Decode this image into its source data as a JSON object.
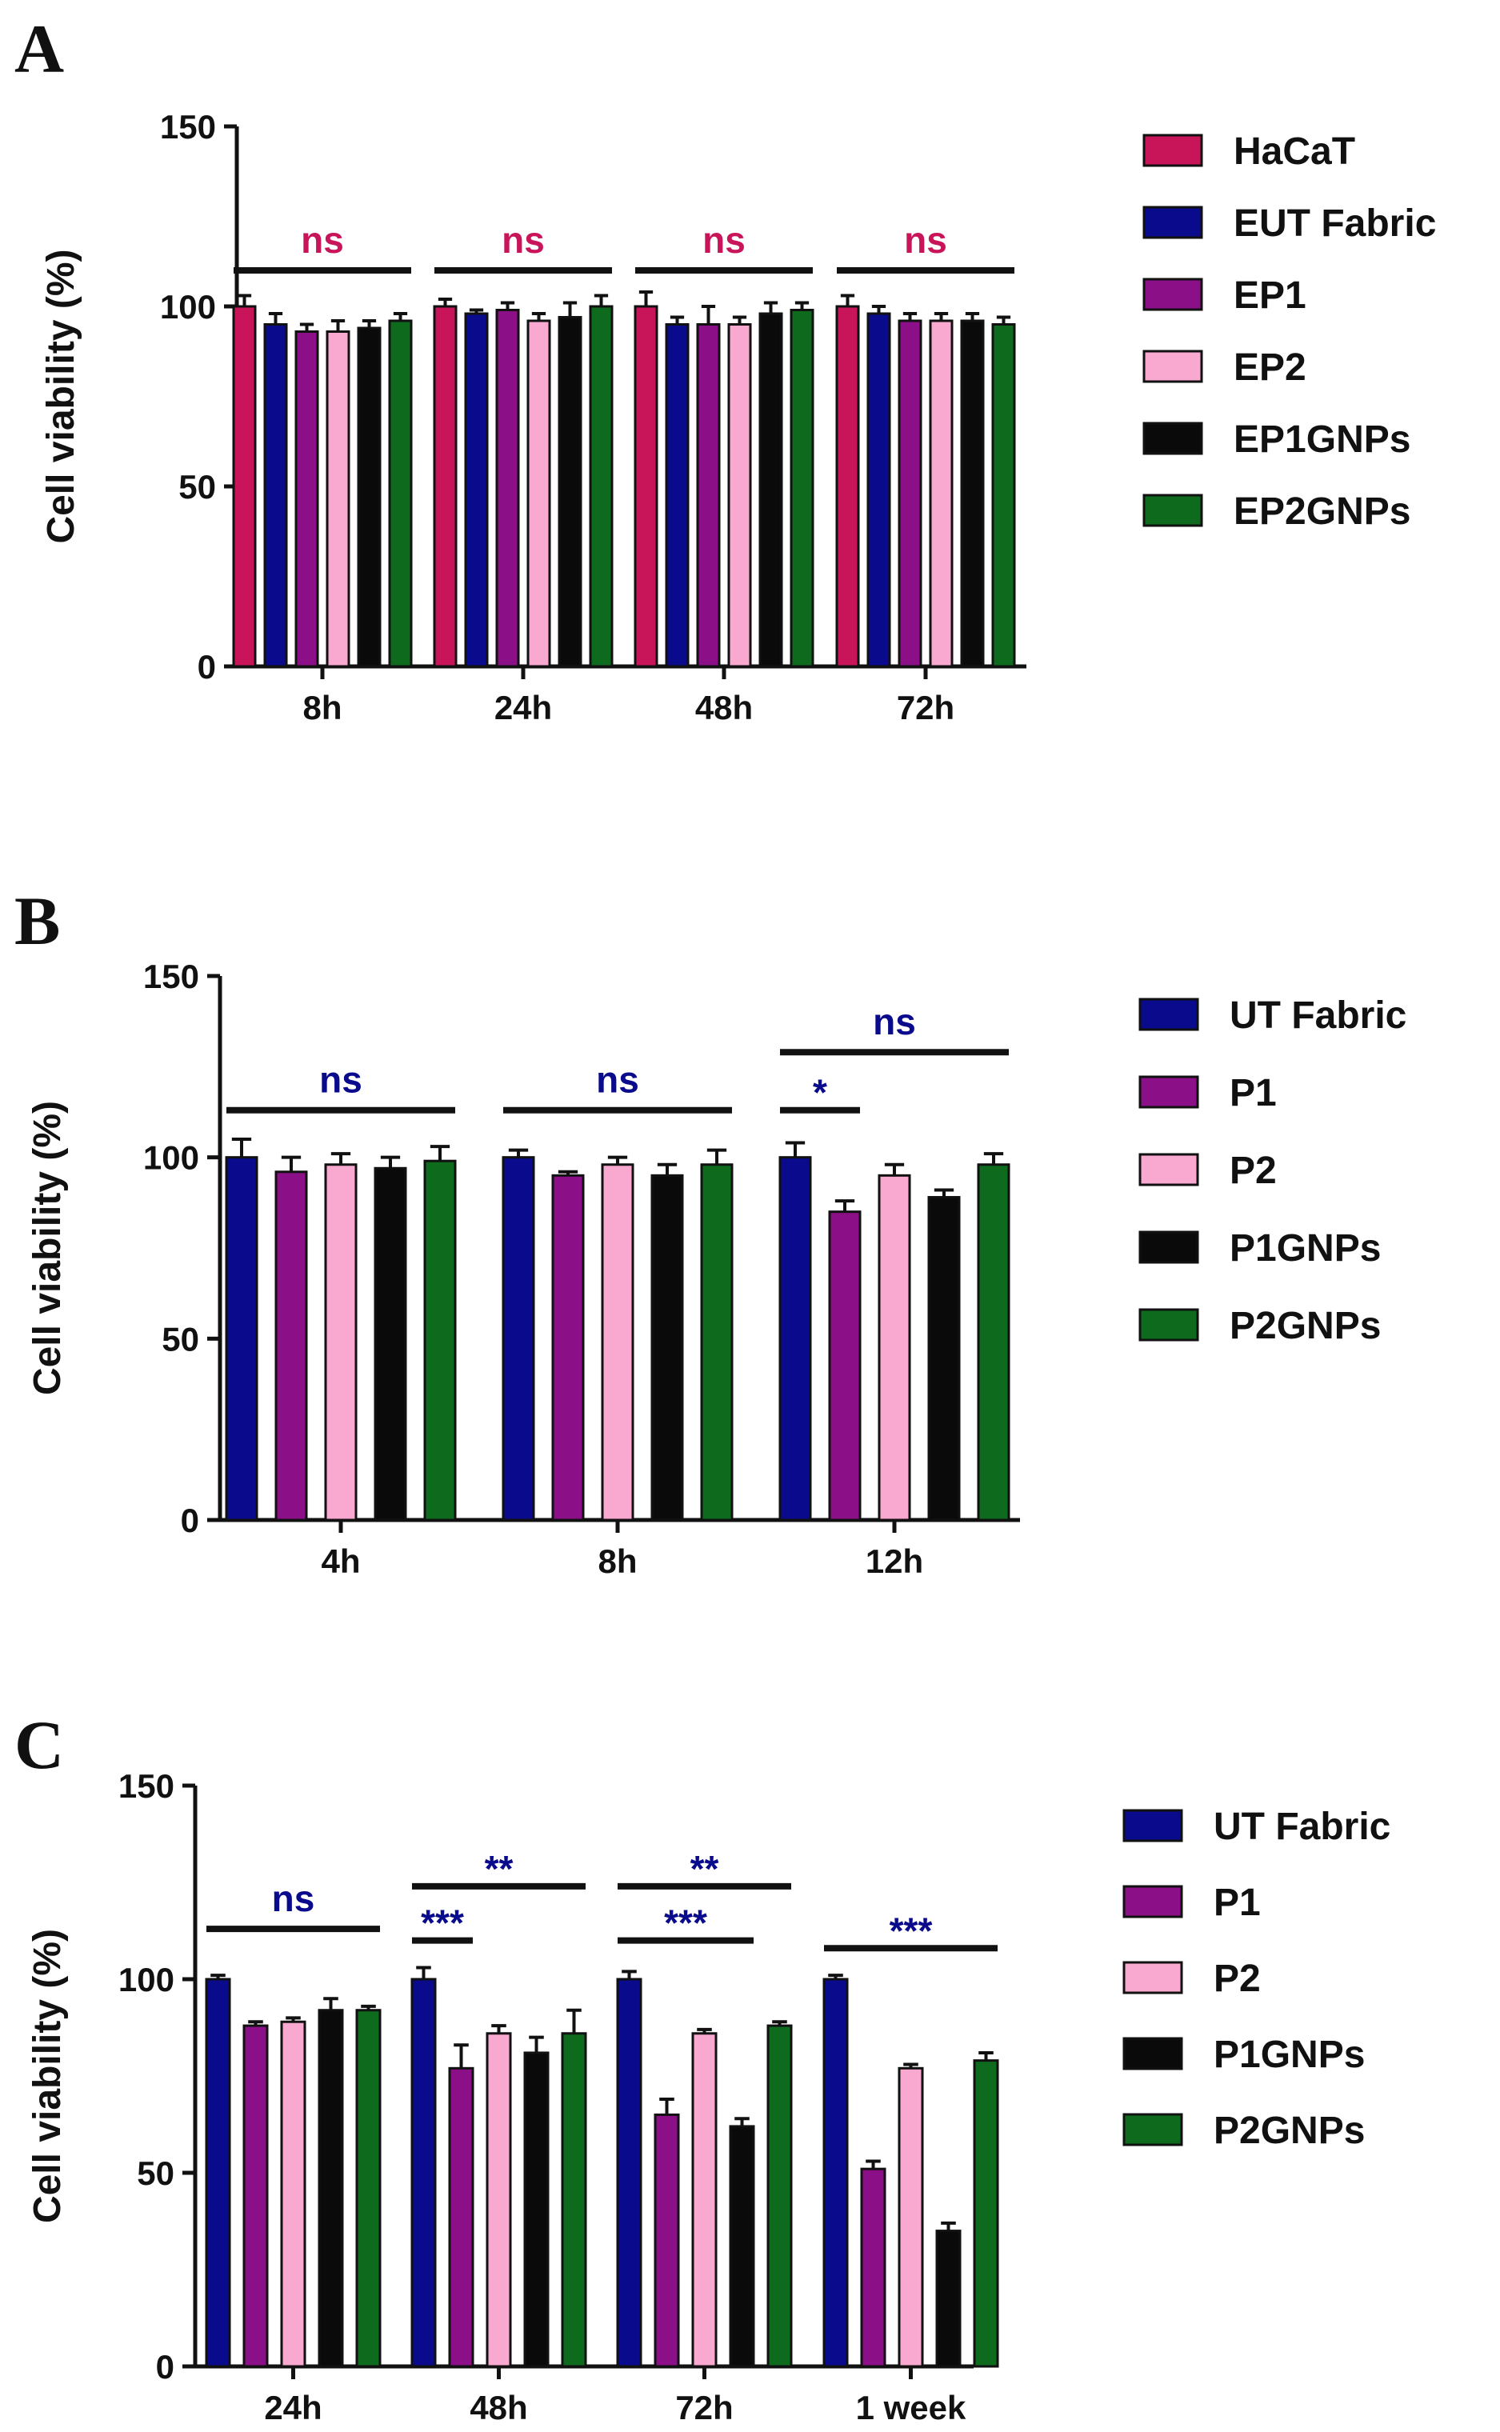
{
  "chart_data": [
    {
      "panel": "A",
      "type": "bar",
      "ylabel": "Cell viability (%)",
      "ylim": [
        0,
        150
      ],
      "yticks": [
        0,
        50,
        100,
        150
      ],
      "categories": [
        "8h",
        "24h",
        "48h",
        "72h"
      ],
      "series": [
        {
          "name": "HaCaT",
          "color": "#C8155A",
          "values": [
            100,
            100,
            100,
            100
          ],
          "errors": [
            3,
            2,
            4,
            3
          ]
        },
        {
          "name": "EUT Fabric",
          "color": "#0A0A8C",
          "values": [
            95,
            98,
            95,
            98
          ],
          "errors": [
            3,
            1,
            2,
            2
          ]
        },
        {
          "name": "EP1",
          "color": "#8B0F87",
          "values": [
            93,
            99,
            95,
            96
          ],
          "errors": [
            2,
            2,
            5,
            2
          ]
        },
        {
          "name": "EP2",
          "color": "#F9A8D0",
          "values": [
            93,
            96,
            95,
            96
          ],
          "errors": [
            3,
            2,
            2,
            2
          ]
        },
        {
          "name": "EP1GNPs",
          "color": "#0A0A0A",
          "values": [
            94,
            97,
            98,
            96
          ],
          "errors": [
            2,
            4,
            3,
            2
          ]
        },
        {
          "name": "EP2GNPs",
          "color": "#0E6B1E",
          "values": [
            96,
            100,
            99,
            95
          ],
          "errors": [
            2,
            3,
            2,
            2
          ]
        }
      ],
      "annotations": [
        {
          "text": "ns",
          "x1_cat": 0,
          "x1_series": 0,
          "x2_cat": 0,
          "x2_series": 5,
          "level": 110,
          "color": "#C8155A"
        },
        {
          "text": "ns",
          "x1_cat": 1,
          "x1_series": 0,
          "x2_cat": 1,
          "x2_series": 5,
          "level": 110,
          "color": "#C8155A"
        },
        {
          "text": "ns",
          "x1_cat": 2,
          "x1_series": 0,
          "x2_cat": 2,
          "x2_series": 5,
          "level": 110,
          "color": "#C8155A"
        },
        {
          "text": "ns",
          "x1_cat": 3,
          "x1_series": 0,
          "x2_cat": 3,
          "x2_series": 5,
          "level": 110,
          "color": "#C8155A"
        }
      ]
    },
    {
      "panel": "B",
      "type": "bar",
      "ylabel": "Cell viability (%)",
      "ylim": [
        0,
        150
      ],
      "yticks": [
        0,
        50,
        100,
        150
      ],
      "categories": [
        "4h",
        "8h",
        "12h"
      ],
      "series": [
        {
          "name": "UT Fabric",
          "color": "#0A0A8C",
          "values": [
            100,
            100,
            100
          ],
          "errors": [
            5,
            2,
            4
          ]
        },
        {
          "name": "P1",
          "color": "#8B0F87",
          "values": [
            96,
            95,
            85
          ],
          "errors": [
            4,
            1,
            3
          ]
        },
        {
          "name": "P2",
          "color": "#F9A8D0",
          "values": [
            98,
            98,
            95
          ],
          "errors": [
            3,
            2,
            3
          ]
        },
        {
          "name": "P1GNPs",
          "color": "#0A0A0A",
          "values": [
            97,
            95,
            89
          ],
          "errors": [
            3,
            3,
            2
          ]
        },
        {
          "name": "P2GNPs",
          "color": "#0E6B1E",
          "values": [
            99,
            98,
            98
          ],
          "errors": [
            4,
            4,
            3
          ]
        }
      ],
      "annotations": [
        {
          "text": "ns",
          "x1_cat": 0,
          "x1_series": 0,
          "x2_cat": 0,
          "x2_series": 4,
          "level": 113,
          "color": "#0A0A8C"
        },
        {
          "text": "ns",
          "x1_cat": 1,
          "x1_series": 0,
          "x2_cat": 1,
          "x2_series": 4,
          "level": 113,
          "color": "#0A0A8C"
        },
        {
          "text": "ns",
          "x1_cat": 2,
          "x1_series": 0,
          "x2_cat": 2,
          "x2_series": 4,
          "level": 129,
          "color": "#0A0A8C"
        },
        {
          "text": "*",
          "x1_cat": 2,
          "x1_series": 0,
          "x2_cat": 2,
          "x2_series": 1,
          "level": 113,
          "color": "#0A0A8C"
        }
      ]
    },
    {
      "panel": "C",
      "type": "bar",
      "ylabel": "Cell viability (%)",
      "ylim": [
        0,
        150
      ],
      "yticks": [
        0,
        50,
        100,
        150
      ],
      "categories": [
        "24h",
        "48h",
        "72h",
        "1 week"
      ],
      "series": [
        {
          "name": "UT Fabric",
          "color": "#0A0A8C",
          "values": [
            100,
            100,
            100,
            100
          ],
          "errors": [
            1,
            3,
            2,
            1
          ]
        },
        {
          "name": "P1",
          "color": "#8B0F87",
          "values": [
            88,
            77,
            65,
            51
          ],
          "errors": [
            1,
            6,
            4,
            2
          ]
        },
        {
          "name": "P2",
          "color": "#F9A8D0",
          "values": [
            89,
            86,
            86,
            77
          ],
          "errors": [
            1,
            2,
            1,
            1
          ]
        },
        {
          "name": "P1GNPs",
          "color": "#0A0A0A",
          "values": [
            92,
            81,
            62,
            35
          ],
          "errors": [
            3,
            4,
            2,
            2
          ]
        },
        {
          "name": "P2GNPs",
          "color": "#0E6B1E",
          "values": [
            92,
            86,
            88,
            79
          ],
          "errors": [
            1,
            6,
            1,
            2
          ]
        }
      ],
      "annotations": [
        {
          "text": "ns",
          "x1_cat": 0,
          "x1_series": 0,
          "x2_cat": 0,
          "x2_series": 4,
          "level": 113,
          "color": "#0A0A8C"
        },
        {
          "text": "***",
          "x1_cat": 1,
          "x1_series": 0,
          "x2_cat": 1,
          "x2_series": 1,
          "level": 110,
          "color": "#0A0A8C"
        },
        {
          "text": "**",
          "x1_cat": 1,
          "x1_series": 0,
          "x2_cat": 1,
          "x2_series": 4,
          "level": 124,
          "color": "#0A0A8C"
        },
        {
          "text": "***",
          "x1_cat": 2,
          "x1_series": 0,
          "x2_cat": 2,
          "x2_series": 3,
          "level": 110,
          "color": "#0A0A8C"
        },
        {
          "text": "**",
          "x1_cat": 2,
          "x1_series": 0,
          "x2_cat": 2,
          "x2_series": 4,
          "level": 124,
          "color": "#0A0A8C"
        },
        {
          "text": "***",
          "x1_cat": 3,
          "x1_series": 0,
          "x2_cat": 3,
          "x2_series": 4,
          "level": 108,
          "color": "#0A0A8C"
        }
      ]
    }
  ]
}
